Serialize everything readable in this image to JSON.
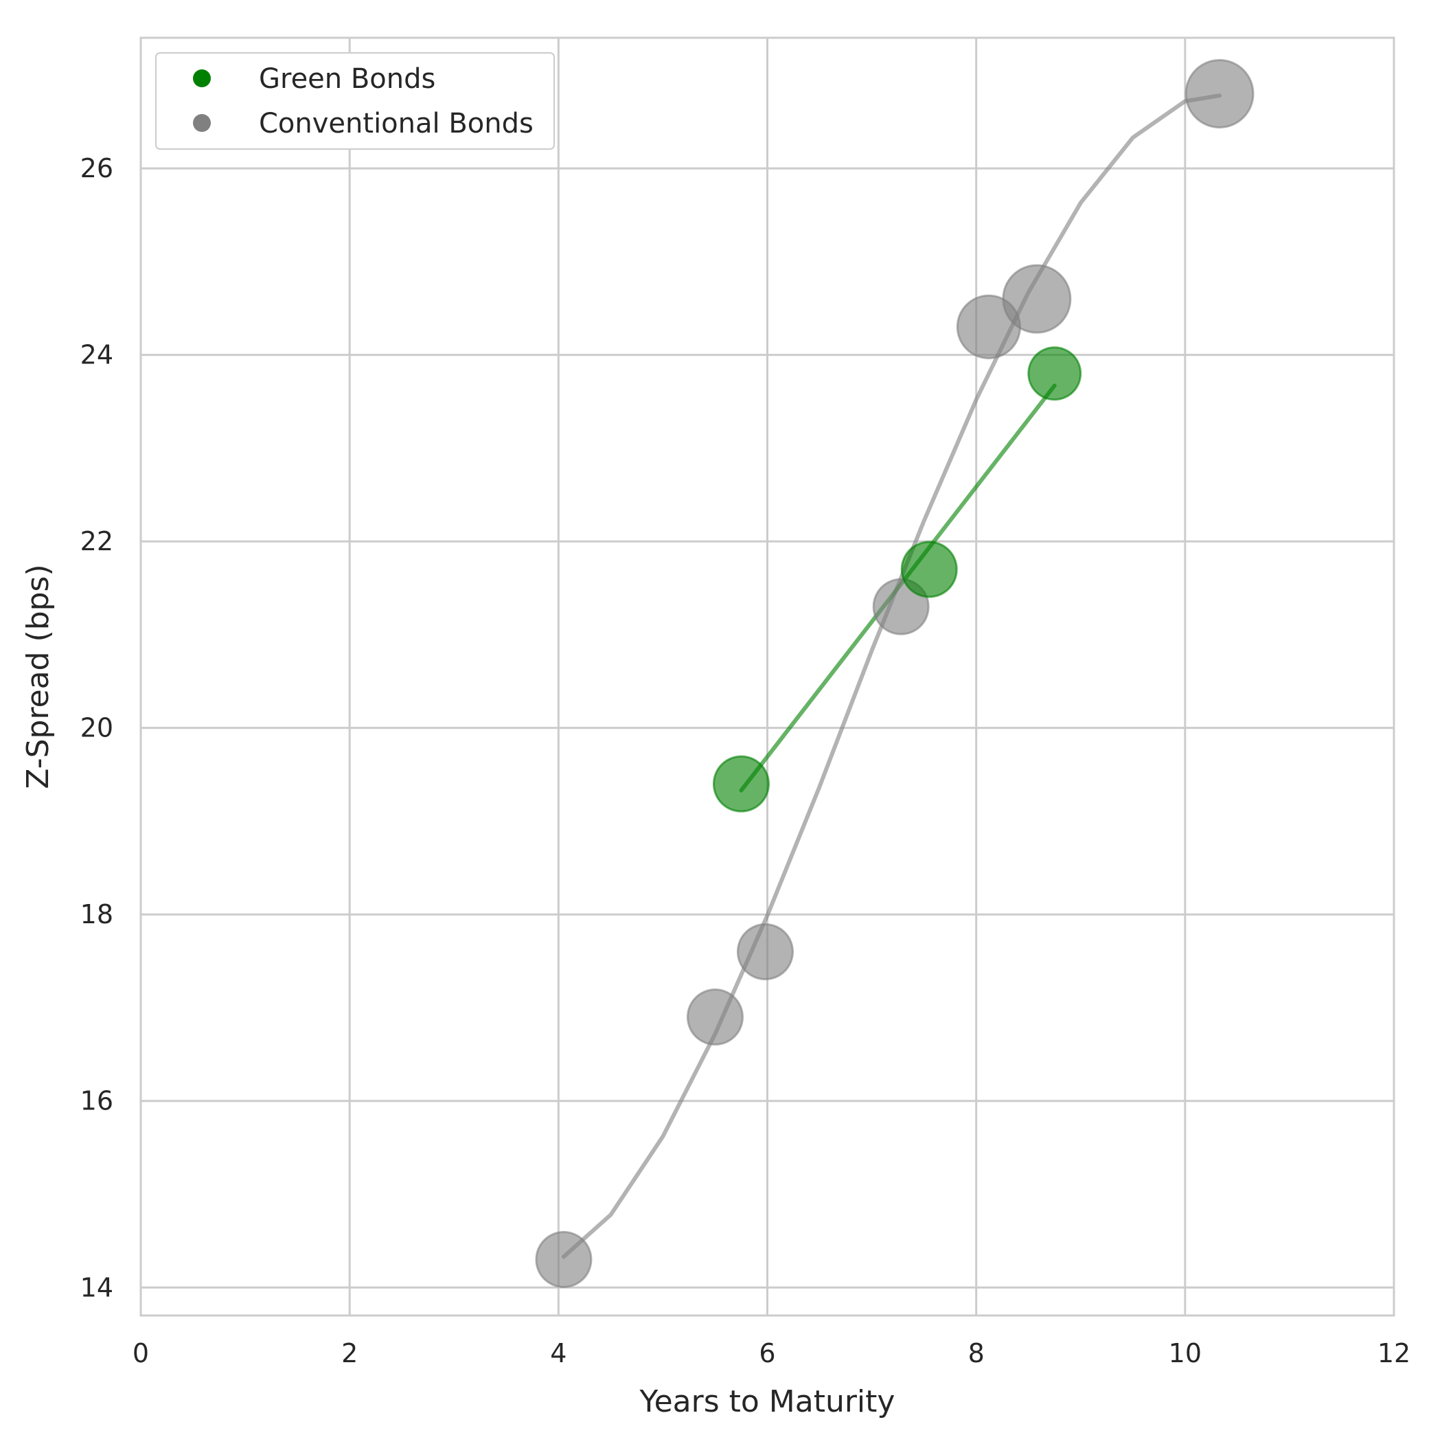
{
  "chart_data": {
    "type": "scatter",
    "title": "",
    "xlabel": "Years to Maturity",
    "ylabel": "Z-Spread (bps)",
    "xlim": [
      0,
      12
    ],
    "ylim": [
      13.7,
      27.4
    ],
    "xticks": [
      0,
      2,
      4,
      6,
      8,
      10,
      12
    ],
    "yticks": [
      14,
      16,
      18,
      20,
      22,
      24,
      26
    ],
    "grid": true,
    "legend": {
      "placement": "top-left"
    },
    "series": [
      {
        "name": "Green Bonds",
        "color": "#008000",
        "points": [
          {
            "x": 5.75,
            "y": 19.4,
            "size": 1.0
          },
          {
            "x": 7.55,
            "y": 21.7,
            "size": 1.0
          },
          {
            "x": 8.75,
            "y": 23.8,
            "size": 0.9
          }
        ],
        "trend_line": [
          {
            "x": 5.75,
            "y": 19.33
          },
          {
            "x": 8.75,
            "y": 23.67
          }
        ]
      },
      {
        "name": "Conventional Bonds",
        "color": "#808080",
        "points": [
          {
            "x": 4.05,
            "y": 14.3,
            "size": 1.0
          },
          {
            "x": 5.5,
            "y": 16.9,
            "size": 1.0
          },
          {
            "x": 5.98,
            "y": 17.6,
            "size": 1.0
          },
          {
            "x": 7.28,
            "y": 21.3,
            "size": 1.0
          },
          {
            "x": 8.12,
            "y": 24.3,
            "size": 1.3
          },
          {
            "x": 8.58,
            "y": 24.6,
            "size": 1.5
          },
          {
            "x": 10.33,
            "y": 26.8,
            "size": 1.5
          }
        ],
        "trend_line": [
          {
            "x": 4.05,
            "y": 14.33
          },
          {
            "x": 4.5,
            "y": 14.78
          },
          {
            "x": 5.0,
            "y": 15.62
          },
          {
            "x": 5.5,
            "y": 16.72
          },
          {
            "x": 6.0,
            "y": 17.99
          },
          {
            "x": 6.5,
            "y": 19.37
          },
          {
            "x": 7.0,
            "y": 20.83
          },
          {
            "x": 7.5,
            "y": 22.22
          },
          {
            "x": 8.0,
            "y": 23.52
          },
          {
            "x": 8.5,
            "y": 24.67
          },
          {
            "x": 9.0,
            "y": 25.63
          },
          {
            "x": 9.5,
            "y": 26.33
          },
          {
            "x": 10.0,
            "y": 26.72
          },
          {
            "x": 10.33,
            "y": 26.78
          }
        ]
      }
    ]
  }
}
